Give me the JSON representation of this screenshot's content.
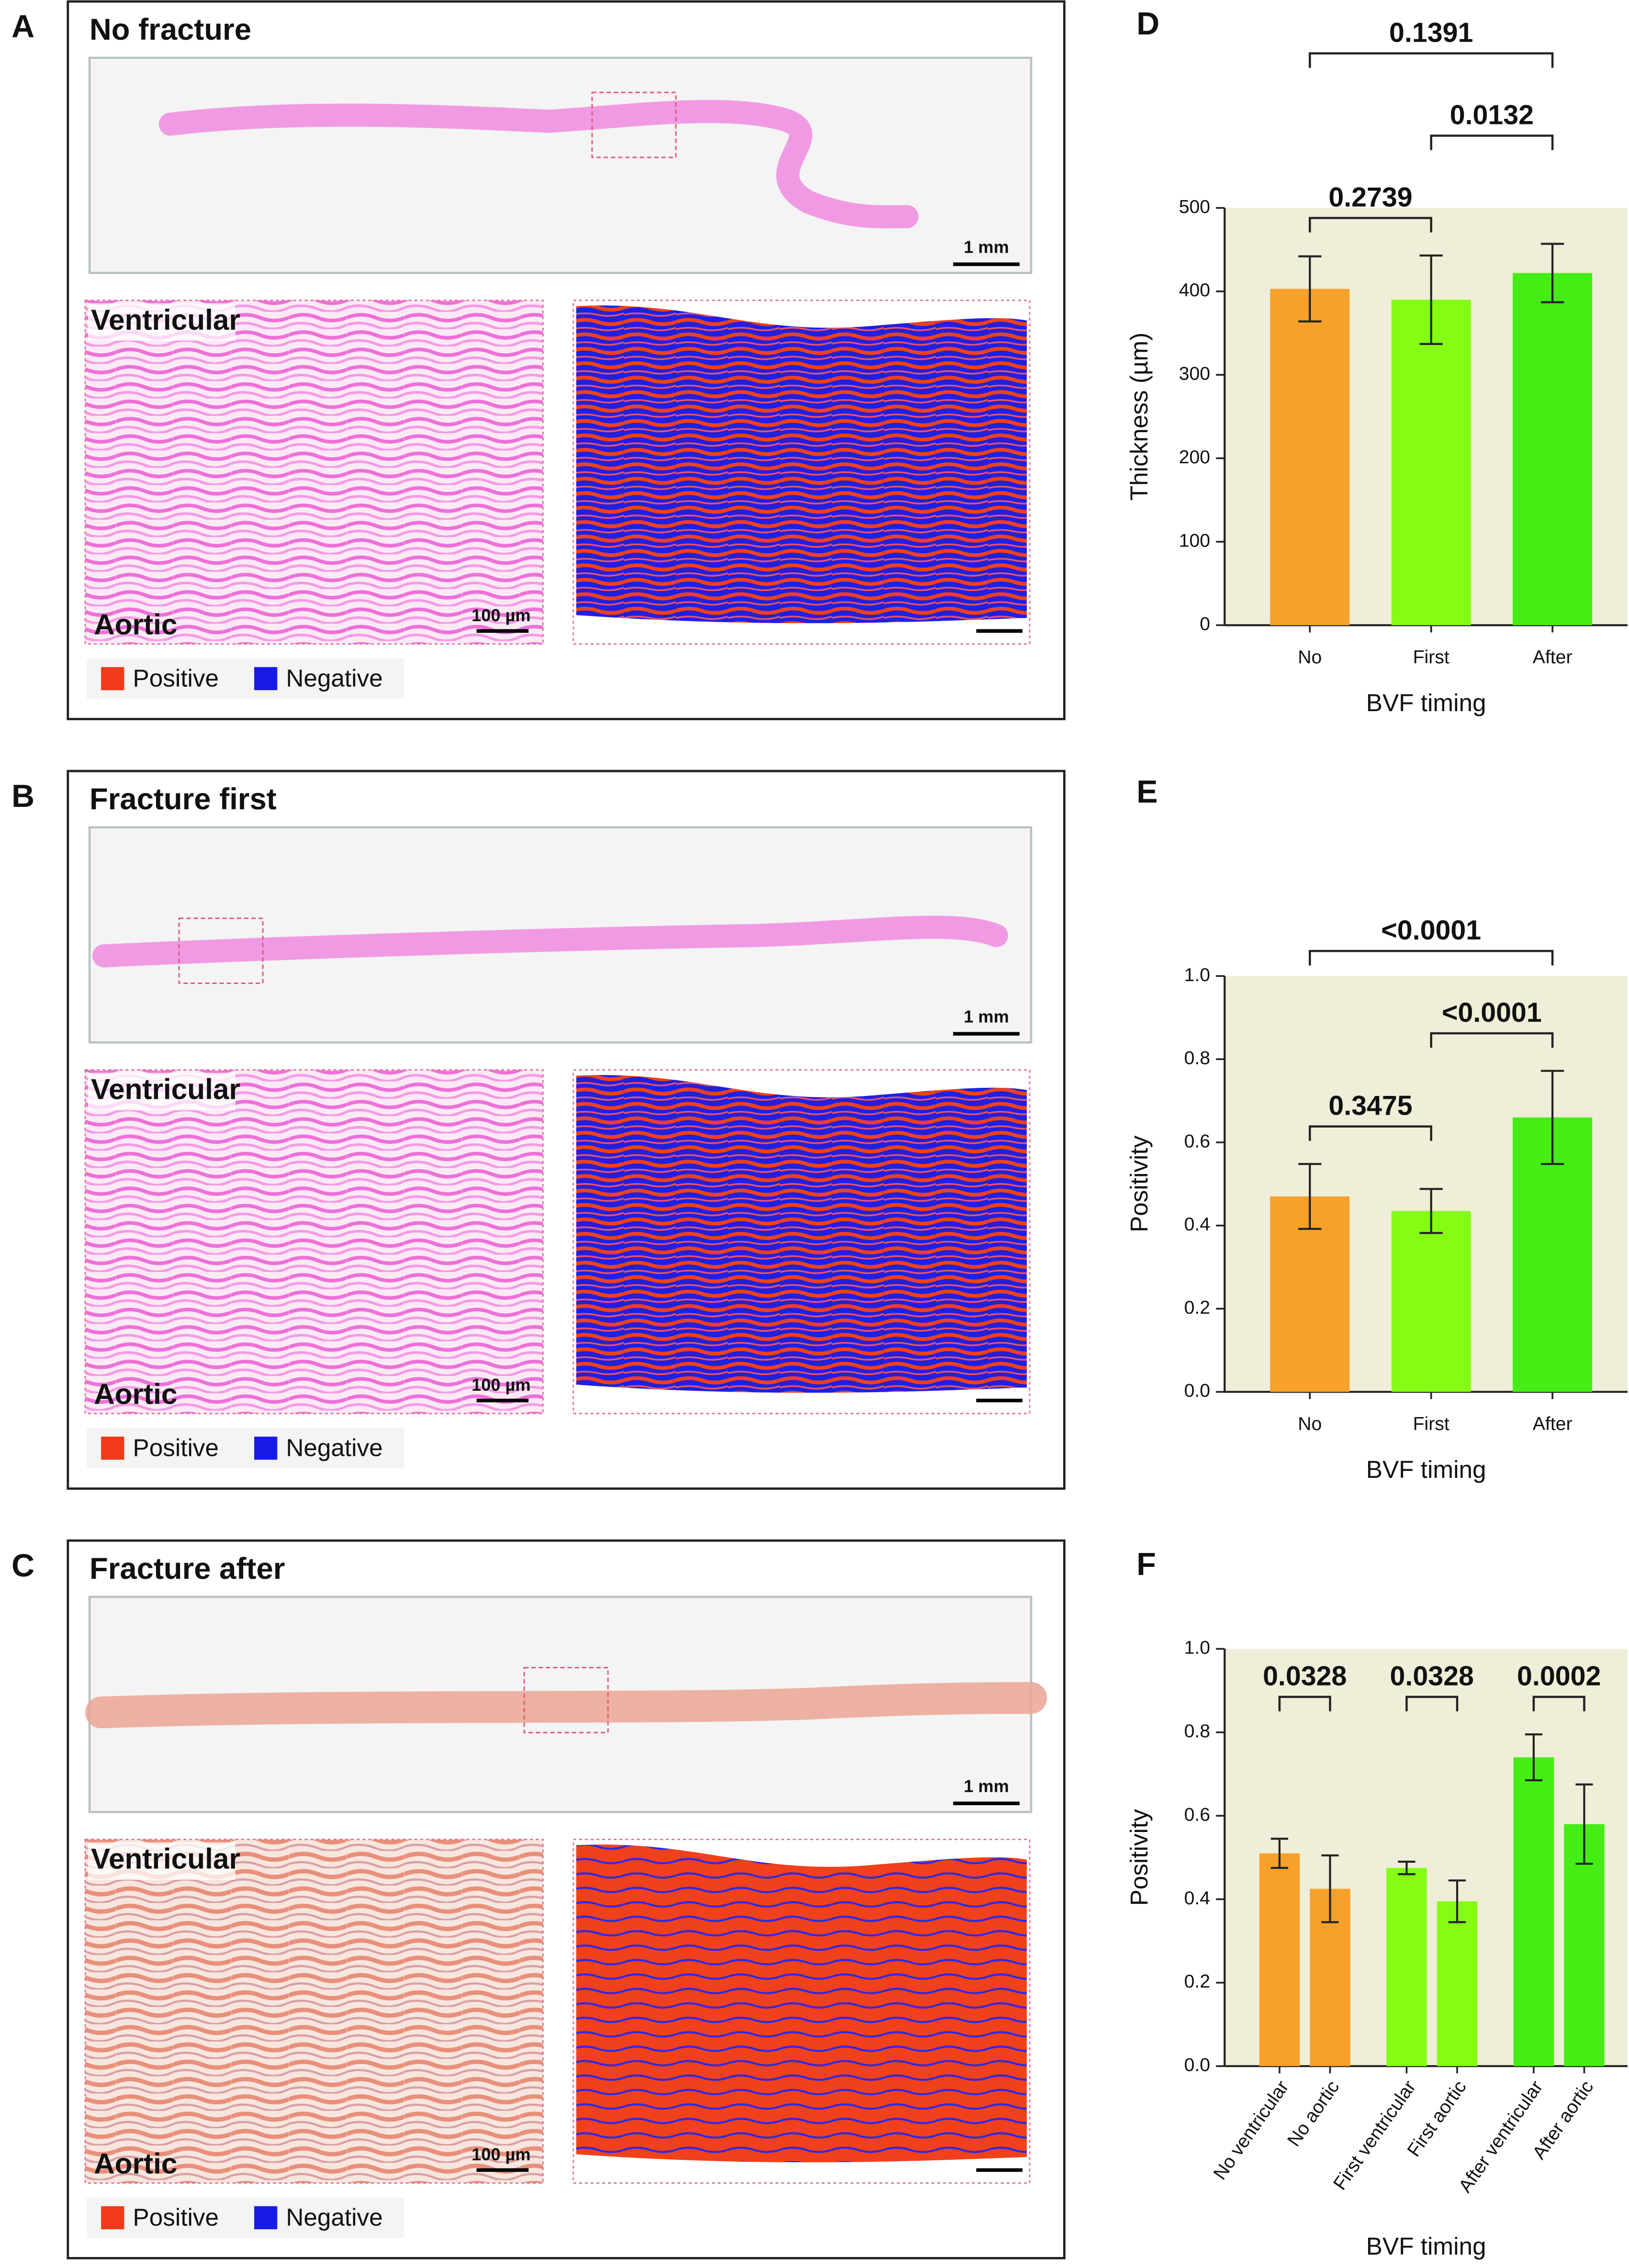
{
  "panels": [
    {
      "label": "A",
      "title": "No fracture",
      "scale_overview": "1 mm",
      "top": "Ventricular",
      "bottom": "Aortic",
      "scale_micro": "100 µm",
      "legend": [
        "Positive",
        "Negative"
      ]
    },
    {
      "label": "B",
      "title": "Fracture first",
      "scale_overview": "1 mm",
      "top": "Ventricular",
      "bottom": "Aortic",
      "scale_micro": "100 µm",
      "legend": [
        "Positive",
        "Negative"
      ]
    },
    {
      "label": "C",
      "title": "Fracture after",
      "scale_overview": "1 mm",
      "top": "Ventricular",
      "bottom": "Aortic",
      "scale_micro": "100 µm",
      "legend": [
        "Positive",
        "Negative"
      ]
    }
  ],
  "legend_colors": [
    "#f03a1a",
    "#1a1ae8"
  ],
  "chart_data": [
    {
      "type": "bar",
      "label": "D",
      "xlabel": "BVF timing",
      "ylabel": "Thickness (µm)",
      "categories": [
        "No",
        "First",
        "After"
      ],
      "values": [
        403,
        390,
        422
      ],
      "errors": [
        39,
        53,
        35
      ],
      "colors": [
        "#f7a12b",
        "#84fc14",
        "#44ee14"
      ],
      "background": "#efeed8",
      "ylim": [
        0,
        500
      ],
      "yticks": [
        0,
        100,
        200,
        300,
        400,
        500
      ],
      "comparisons": [
        {
          "pair": [
            0,
            2
          ],
          "label": "0.1391"
        },
        {
          "pair": [
            1,
            2
          ],
          "label": "0.0132"
        },
        {
          "pair": [
            0,
            1
          ],
          "label": "0.2739"
        }
      ]
    },
    {
      "type": "bar",
      "label": "E",
      "xlabel": "BVF timing",
      "ylabel": "Positivity",
      "categories": [
        "No",
        "First",
        "After"
      ],
      "values": [
        0.47,
        0.435,
        0.66
      ],
      "errors": [
        0.078,
        0.053,
        0.112
      ],
      "colors": [
        "#f7a12b",
        "#84fc14",
        "#44ee14"
      ],
      "background": "#efeed8",
      "ylim": [
        0,
        1
      ],
      "yticks": [
        {
          "value": 0,
          "label": "0.0"
        },
        0.2,
        0.4,
        0.6,
        0.8,
        {
          "value": 1,
          "label": "1.0"
        }
      ],
      "comparisons": [
        {
          "pair": [
            0,
            2
          ],
          "label": "<0.0001"
        },
        {
          "pair": [
            1,
            2
          ],
          "label": "<0.0001"
        },
        {
          "pair": [
            0,
            1
          ],
          "label": "0.3475"
        }
      ]
    },
    {
      "type": "bar",
      "label": "F",
      "xlabel": "BVF timing",
      "ylabel": "Positivity",
      "categories": [
        "No ventricular",
        "No aortic",
        "First ventricular",
        "First aortic",
        "After ventricular",
        "After aortic"
      ],
      "values": [
        0.51,
        0.425,
        0.475,
        0.395,
        0.74,
        0.58
      ],
      "errors": [
        0.035,
        0.08,
        0.015,
        0.05,
        0.055,
        0.095
      ],
      "colors": [
        "#f7a12b",
        "#f7a12b",
        "#84fc14",
        "#84fc14",
        "#44ee14",
        "#44ee14"
      ],
      "background": "#efeed8",
      "ylim": [
        0,
        1
      ],
      "yticks": [
        {
          "value": 0,
          "label": "0.0"
        },
        0.2,
        0.4,
        0.6,
        0.8,
        {
          "value": 1,
          "label": "1.0"
        }
      ],
      "comparisons": [
        {
          "pair": [
            0,
            1
          ],
          "label": "0.0328"
        },
        {
          "pair": [
            2,
            3
          ],
          "label": "0.0328"
        },
        {
          "pair": [
            4,
            5
          ],
          "label": "0.0002"
        }
      ]
    }
  ]
}
